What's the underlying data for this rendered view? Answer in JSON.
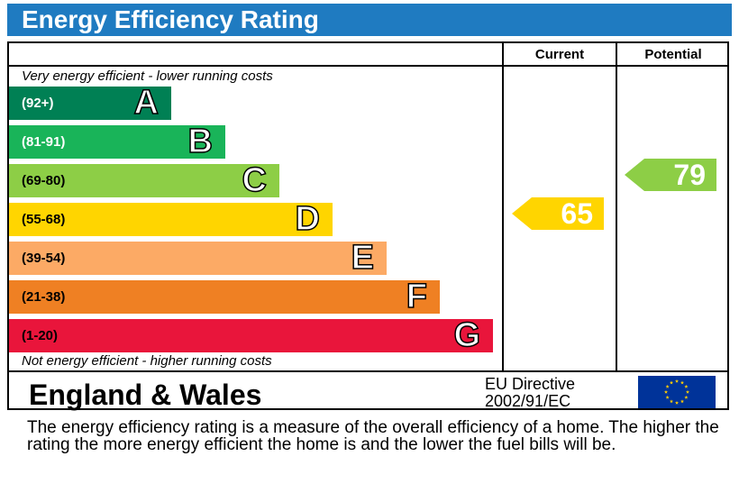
{
  "chart_data": {
    "type": "bar",
    "title": "Energy Efficiency Rating",
    "top_note": "Very energy efficient - lower running costs",
    "bottom_note": "Not energy efficient - higher running costs",
    "columns": [
      "Current",
      "Potential"
    ],
    "bands": [
      {
        "range": "(92+)",
        "letter": "A",
        "color": "#008054",
        "text_color": "#ffffff"
      },
      {
        "range": "(81-91)",
        "letter": "B",
        "color": "#19b459",
        "text_color": "#ffffff"
      },
      {
        "range": "(69-80)",
        "letter": "C",
        "color": "#8dce46",
        "text_color": "#000000"
      },
      {
        "range": "(55-68)",
        "letter": "D",
        "color": "#ffd500",
        "text_color": "#000000"
      },
      {
        "range": "(39-54)",
        "letter": "E",
        "color": "#fcaa65",
        "text_color": "#000000"
      },
      {
        "range": "(21-38)",
        "letter": "F",
        "color": "#ef8023",
        "text_color": "#000000"
      },
      {
        "range": "(1-20)",
        "letter": "G",
        "color": "#e9153b",
        "text_color": "#000000"
      }
    ],
    "current": {
      "value": 65,
      "band": "D",
      "color": "#ffd500"
    },
    "potential": {
      "value": 79,
      "band": "C",
      "color": "#8dce46"
    }
  },
  "footer": {
    "region": "England & Wales",
    "directive_line1": "EU Directive",
    "directive_line2": "2002/91/EC",
    "flag_icon": "eu-flag-icon"
  },
  "description": "The energy efficiency rating is a measure of the overall efficiency of a home.  The higher the rating the more energy efficient the home is and the lower the fuel bills will be."
}
